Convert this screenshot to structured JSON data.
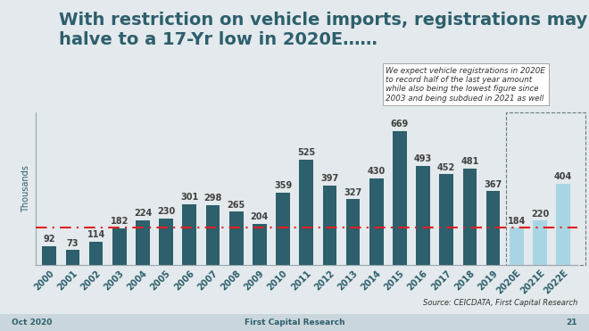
{
  "chart_data": {
    "type": "bar",
    "title": "With restriction on vehicle imports, registrations may halve to a 17-Yr low in 2020E……",
    "y_label": "Thousands",
    "categories": [
      "2000",
      "2001",
      "2002",
      "2003",
      "2004",
      "2005",
      "2006",
      "2007",
      "2008",
      "2009",
      "2010",
      "2011",
      "2012",
      "2013",
      "2014",
      "2015",
      "2016",
      "2017",
      "2018",
      "2019",
      "2020E",
      "2021E",
      "2022E"
    ],
    "values": [
      92,
      73,
      114,
      182,
      224,
      230,
      301,
      298,
      265,
      204,
      359,
      525,
      397,
      327,
      430,
      669,
      493,
      452,
      481,
      367,
      184,
      220,
      404
    ],
    "colors": [
      "#2d5f6c",
      "#2d5f6c",
      "#2d5f6c",
      "#2d5f6c",
      "#2d5f6c",
      "#2d5f6c",
      "#2d5f6c",
      "#2d5f6c",
      "#2d5f6c",
      "#2d5f6c",
      "#2d5f6c",
      "#2d5f6c",
      "#2d5f6c",
      "#2d5f6c",
      "#2d5f6c",
      "#2d5f6c",
      "#2d5f6c",
      "#2d5f6c",
      "#2d5f6c",
      "#2d5f6c",
      "#a8d5e3",
      "#a8d5e3",
      "#a8d5e3"
    ],
    "reference_line": 184,
    "reference_line_color": "#e02020",
    "ylim": [
      0,
      760
    ],
    "yticks": [],
    "data_labels": true,
    "tick_labels": "x",
    "grid": false,
    "annotation": "We expect vehicle registrations in 2020E to record half of the last year amount while also being the lowest figure since 2003 and being subdued in 2021 as well",
    "source": "Source: CEICDATA, First Capital Research",
    "footer": {
      "left": "Oct 2020",
      "center": "First Capital Research",
      "right": "21"
    }
  }
}
